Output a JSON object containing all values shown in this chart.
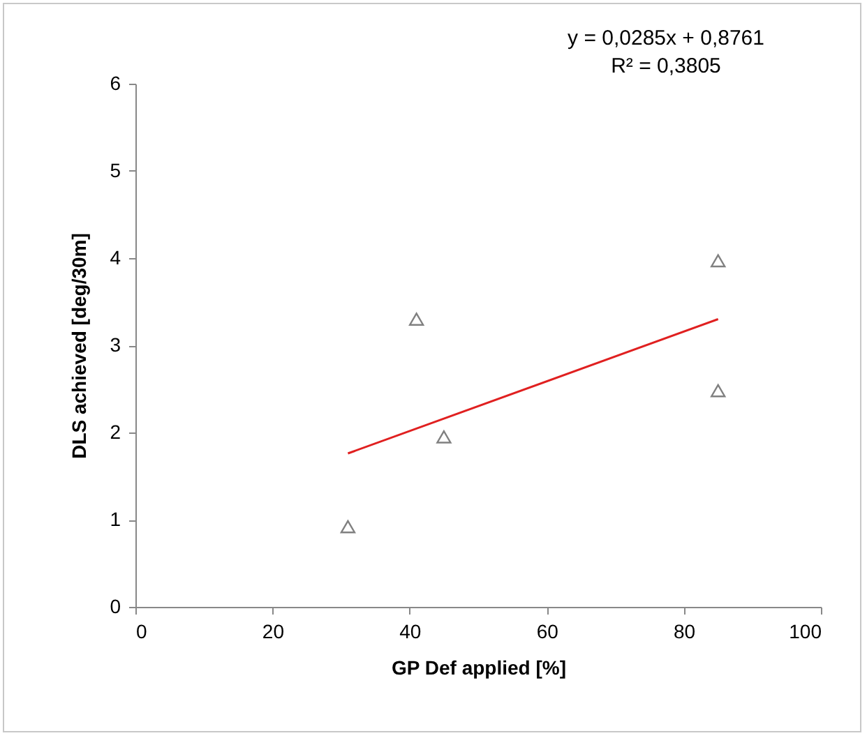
{
  "chart_data": {
    "type": "scatter",
    "xlabel": "GP Def applied [%]",
    "ylabel": "DLS achieved [deg/30m]",
    "annotations": [
      "y = 0,0285x + 0,8761",
      "R² = 0,3805"
    ],
    "series": [
      {
        "type": "scatter",
        "color": "#808080",
        "marker": "triangle",
        "x": [
          31,
          41,
          45,
          85,
          85
        ],
        "values": [
          0.92,
          3.3,
          1.95,
          3.97,
          2.48
        ]
      },
      {
        "type": "line",
        "color": "#e02020",
        "marker": "none",
        "x": [
          31,
          85
        ],
        "values": [
          1.76,
          3.3
        ]
      }
    ],
    "xlim": [
      0,
      100
    ],
    "xticks": [
      0,
      20,
      40,
      60,
      80,
      100
    ],
    "ylim": [
      0,
      6
    ],
    "yticks": [
      0,
      1,
      2,
      3,
      4,
      5,
      6
    ],
    "grid": false
  }
}
